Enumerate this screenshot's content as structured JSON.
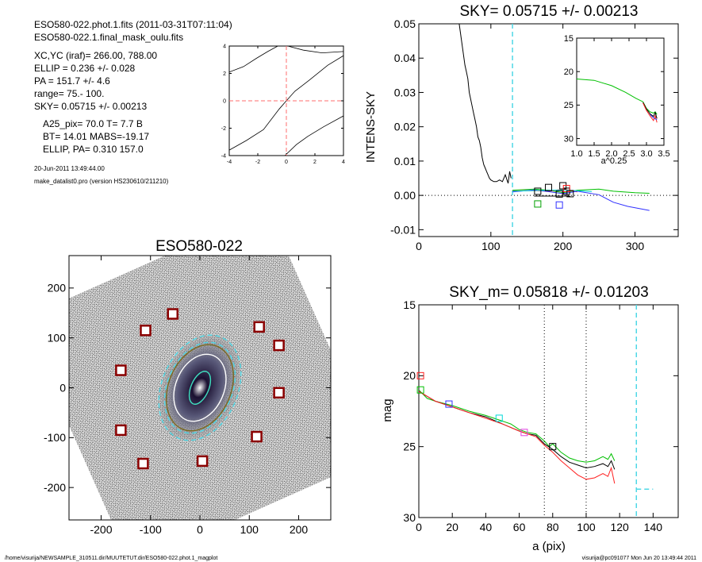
{
  "header": {
    "lines": [
      "ESO580-022.phot.1.fits  (2011-03-31T07:11:04)",
      "ESO580-022.1.final_mask_oulu.fits",
      "XC,YC (iraf)=   266.00, 788.00",
      "ELLIP = 0.236 +/- 0.028",
      "PA    = 151.7 +/-   4.6",
      "range=   75.-  100.",
      "SKY= 0.05715 +/- 0.00213",
      "A25_pix= 70.0   T= 7.7  B",
      "BT=  14.01    MABS=-19.17",
      "ELLIP, PA= 0.310   157.0",
      "20-Jun-2011 13:49:44.00",
      "make_datalist0.pro (version HS230610/211210)"
    ]
  },
  "footer": {
    "left": "/home/visurija/NEWSAMPLE_310511.dir/MUUTETUT.dir/ESO580-022.phot.1_magplot",
    "right": "visurija@pc091077  Mon Jun 20 13:49:44 2011"
  },
  "chart_data": [
    {
      "id": "center-panel",
      "type": "line",
      "xlim": [
        -4,
        4
      ],
      "ylim": [
        -4,
        4
      ],
      "xticks": [
        -4,
        -2,
        0,
        2,
        4
      ],
      "yticks": [
        -4,
        -2,
        0,
        2,
        4
      ],
      "series": [
        {
          "color": "#000000",
          "x": [
            -4,
            -2.8,
            -1.6,
            -0.5,
            0,
            0.6,
            1.6,
            2.9,
            4
          ],
          "y": [
            -3.6,
            -2.9,
            -2.1,
            -0.6,
            0,
            0.7,
            1.5,
            2.6,
            3.3
          ]
        },
        {
          "color": "#000000",
          "x": [
            -0.1,
            0.7,
            1.5,
            2.6,
            4
          ],
          "y": [
            -4,
            -3.2,
            -2.6,
            -1.9,
            -1.1
          ]
        },
        {
          "color": "#000000",
          "x": [
            -4,
            -3,
            -2.1,
            -1.3,
            -0.6
          ],
          "y": [
            2.1,
            2.5,
            3.1,
            3.6,
            4
          ]
        },
        {
          "color": "#000000",
          "x": [
            0.1,
            1.2,
            2.5,
            4
          ],
          "y": [
            4,
            3.7,
            3.5,
            3.6
          ]
        }
      ],
      "crosshair": {
        "x": 0,
        "y": 0,
        "color": "#ff6e6e"
      }
    },
    {
      "id": "sky-panel",
      "type": "line",
      "title": "SKY= 0.05715 +/- 0.00213",
      "ylabel": "INTENS-SKY",
      "xlim": [
        0,
        360
      ],
      "ylim": [
        -0.012,
        0.05
      ],
      "xticks": [
        0,
        100,
        200,
        300
      ],
      "yticks": [
        -0.01,
        0.0,
        0.01,
        0.02,
        0.03,
        0.04,
        0.05
      ],
      "ytick_labels": [
        "-0.01",
        "0.00",
        "0.01",
        "0.02",
        "0.03",
        "0.04",
        "0.05"
      ],
      "vline_x": 130,
      "vline_color": "#4fd8e6",
      "series": [
        {
          "color": "#000000",
          "x": [
            56,
            58,
            60,
            62,
            64,
            66,
            68,
            70,
            72,
            74,
            76,
            78,
            80,
            82,
            84,
            86,
            88,
            90,
            92,
            94,
            96,
            98,
            100,
            104,
            108,
            112,
            116,
            120,
            124,
            126,
            128
          ],
          "y": [
            0.05,
            0.047,
            0.044,
            0.041,
            0.038,
            0.036,
            0.034,
            0.03,
            0.028,
            0.026,
            0.024,
            0.022,
            0.02,
            0.017,
            0.016,
            0.014,
            0.011,
            0.009,
            0.008,
            0.007,
            0.006,
            0.005,
            0.0045,
            0.004,
            0.004,
            0.0045,
            0.004,
            0.006,
            0.0035,
            0.007,
            0.005
          ]
        },
        {
          "color": "#000000",
          "x": [
            160,
            210
          ],
          "y": [
            -0.0002,
            -0.0002
          ]
        },
        {
          "color": "#00c000",
          "x": [
            130,
            160,
            180,
            200,
            220,
            250,
            270,
            300,
            320
          ],
          "y": [
            0.0015,
            0.0018,
            0.0015,
            0.0008,
            0.0015,
            0.0018,
            0.0012,
            0.0008,
            0.0006
          ]
        },
        {
          "color": "#ff2020",
          "x": [
            130,
            160,
            180,
            200,
            220
          ],
          "y": [
            0.0013,
            0.0014,
            0.0012,
            0.0018,
            0.001
          ]
        },
        {
          "color": "#3030ff",
          "x": [
            130,
            160,
            180,
            200,
            220,
            250,
            270,
            290,
            320
          ],
          "y": [
            0.001,
            0.0016,
            0.0011,
            0.0005,
            0.0012,
            0.0002,
            -0.002,
            -0.0032,
            -0.0044
          ]
        },
        {
          "color": "#00d8d8",
          "x": [
            130,
            160,
            200,
            240
          ],
          "y": [
            0.0012,
            0.0014,
            0.0016,
            0.0011
          ]
        }
      ],
      "markers": [
        {
          "x": 165,
          "y": 0.0012,
          "color": "#000000"
        },
        {
          "x": 180,
          "y": 0.0023,
          "color": "#000000"
        },
        {
          "x": 195,
          "y": 0.0004,
          "color": "#000000"
        },
        {
          "x": 200,
          "y": 0.0028,
          "color": "#000000"
        },
        {
          "x": 205,
          "y": 0.0012,
          "color": "#000000"
        },
        {
          "x": 165,
          "y": -0.0025,
          "color": "#00a000"
        },
        {
          "x": 195,
          "y": -0.0028,
          "color": "#3030ff"
        },
        {
          "x": 205,
          "y": 0.002,
          "color": "#ff2020"
        },
        {
          "x": 210,
          "y": 0.0005,
          "color": "#000000"
        }
      ]
    },
    {
      "id": "inset-panel",
      "type": "line",
      "xlabel": "a^0.25",
      "xlim": [
        1.0,
        3.5
      ],
      "ylim": [
        31,
        15
      ],
      "xticks": [
        1.0,
        1.5,
        2.0,
        2.5,
        3.0,
        3.5
      ],
      "xtick_labels": [
        "1.0",
        "1.5",
        "2.0",
        "2.5",
        "3.0",
        "3.5"
      ],
      "yticks": [
        15,
        20,
        25,
        30
      ],
      "series": [
        {
          "color": "#00c000",
          "x": [
            1.0,
            1.5,
            2.0,
            2.4,
            2.7,
            2.9,
            3.0,
            3.1,
            3.2,
            3.25,
            3.3
          ],
          "y": [
            21.1,
            21.3,
            22.1,
            23.1,
            24.0,
            24.5,
            25.5,
            26.0,
            26.2,
            26.0,
            26.4
          ]
        },
        {
          "color": "#000000",
          "x": [
            2.9,
            3.0,
            3.1,
            3.2,
            3.25,
            3.3
          ],
          "y": [
            24.6,
            25.6,
            26.3,
            26.7,
            26.1,
            27.0
          ]
        },
        {
          "color": "#ff2020",
          "x": [
            2.9,
            3.0,
            3.1,
            3.2,
            3.25,
            3.3
          ],
          "y": [
            24.7,
            25.8,
            26.6,
            27.3,
            26.6,
            27.6
          ]
        },
        {
          "color": "#3030ff",
          "x": [
            3.1,
            3.2,
            3.3
          ],
          "y": [
            26.4,
            26.9,
            27.2
          ]
        }
      ]
    },
    {
      "id": "galaxy-panel",
      "type": "scatter",
      "title": "ESO580-022",
      "xlim": [
        -265,
        265
      ],
      "ylim": [
        -265,
        265
      ],
      "xticks": [
        -200,
        -100,
        0,
        100,
        200
      ],
      "yticks": [
        -200,
        -100,
        0,
        100,
        200
      ],
      "masks": [
        {
          "x": -55,
          "y": 148
        },
        {
          "x": -110,
          "y": 115
        },
        {
          "x": 120,
          "y": 122
        },
        {
          "x": 160,
          "y": 85
        },
        {
          "x": -160,
          "y": 35
        },
        {
          "x": 160,
          "y": -10
        },
        {
          "x": -160,
          "y": -85
        },
        {
          "x": 115,
          "y": -98
        },
        {
          "x": -115,
          "y": -152
        },
        {
          "x": 5,
          "y": -147
        }
      ],
      "ellipses": [
        {
          "a": 110,
          "b": 77,
          "pa": 157,
          "color": "#4fd8e6",
          "dash": true
        },
        {
          "a": 95,
          "b": 66,
          "pa": 157,
          "color": "#4fd8e6",
          "dash": true
        },
        {
          "a": 90,
          "b": 63,
          "pa": 157,
          "color": "#7a6a20",
          "dash": false
        },
        {
          "a": 70,
          "b": 49,
          "pa": 157,
          "color": "#ffffff",
          "dash": false
        },
        {
          "a": 35,
          "b": 18,
          "pa": 157,
          "color": "#40e0c0",
          "dash": false
        }
      ]
    },
    {
      "id": "mag-panel",
      "type": "line",
      "title": "SKY_m=  0.05818 +/- 0.01203",
      "xlabel": "a (pix)",
      "ylabel": "mag",
      "xlim": [
        0,
        155
      ],
      "ylim": [
        30,
        15
      ],
      "xticks": [
        0,
        20,
        40,
        60,
        80,
        100,
        120,
        140
      ],
      "yticks": [
        15,
        20,
        25,
        30
      ],
      "vlines_dotted": [
        75,
        100
      ],
      "vline_dashed": 130,
      "sky_level": {
        "x": [
          130,
          140
        ],
        "y": [
          28.0,
          28.0
        ]
      },
      "series": [
        {
          "color": "#00c000",
          "x": [
            0,
            5,
            10,
            20,
            30,
            40,
            50,
            55,
            60,
            65,
            70,
            75,
            78,
            80,
            85,
            90,
            95,
            100,
            105,
            110,
            113,
            115,
            117
          ],
          "y": [
            21.0,
            21.6,
            21.8,
            22.1,
            22.5,
            22.8,
            23.2,
            23.4,
            23.8,
            24.0,
            24.1,
            24.6,
            25.0,
            24.8,
            25.4,
            25.8,
            26.0,
            26.1,
            26.0,
            25.7,
            25.9,
            25.5,
            26.0
          ]
        },
        {
          "color": "#000000",
          "x": [
            0,
            10,
            20,
            30,
            40,
            50,
            60,
            65,
            70,
            75,
            80,
            85,
            90,
            95,
            100,
            105,
            110,
            113,
            115,
            117
          ],
          "y": [
            21.1,
            21.8,
            22.2,
            22.6,
            22.9,
            23.4,
            23.9,
            24.1,
            24.2,
            24.8,
            25.2,
            25.7,
            26.1,
            26.3,
            26.5,
            26.4,
            26.2,
            26.4,
            26.0,
            26.6
          ]
        },
        {
          "color": "#ff2020",
          "x": [
            0,
            10,
            20,
            30,
            40,
            50,
            60,
            65,
            70,
            75,
            80,
            85,
            90,
            95,
            100,
            105,
            110,
            113,
            115,
            117
          ],
          "y": [
            21.1,
            21.8,
            22.2,
            22.6,
            23.0,
            23.4,
            23.9,
            24.1,
            24.3,
            24.9,
            25.4,
            26.0,
            26.5,
            27.0,
            27.3,
            27.2,
            26.9,
            27.1,
            26.5,
            27.6
          ]
        }
      ],
      "markers": [
        {
          "x": 1,
          "y": 20.0,
          "color": "#ff2020"
        },
        {
          "x": 1,
          "y": 21.0,
          "color": "#00c000"
        },
        {
          "x": 18,
          "y": 22.0,
          "color": "#3030ff"
        },
        {
          "x": 48,
          "y": 23.0,
          "color": "#00d8d8"
        },
        {
          "x": 63,
          "y": 24.0,
          "color": "#e040e0"
        },
        {
          "x": 80,
          "y": 25.0,
          "color": "#000000"
        }
      ]
    }
  ]
}
